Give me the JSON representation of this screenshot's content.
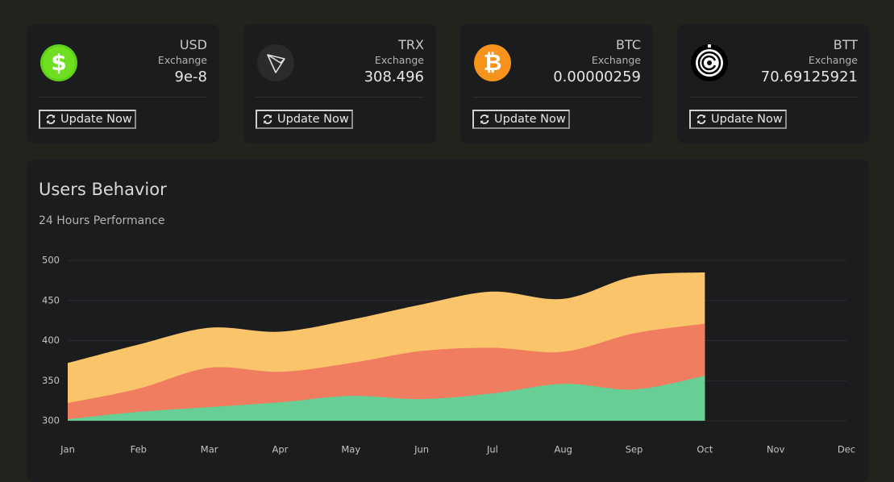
{
  "cards": [
    {
      "currency": "USD",
      "label": "Exchange",
      "value": "9e-8",
      "button": "Update Now",
      "icon": "$"
    },
    {
      "currency": "TRX",
      "label": "Exchange",
      "value": "308.496",
      "button": "Update Now"
    },
    {
      "currency": "BTC",
      "label": "Exchange",
      "value": "0.00000259",
      "button": "Update Now",
      "icon": "₿"
    },
    {
      "currency": "BTT",
      "label": "Exchange",
      "value": "70.69125921",
      "button": "Update Now"
    }
  ],
  "chart_data": {
    "type": "area",
    "title": "Users Behavior",
    "subtitle": "24 Hours Performance",
    "categories": [
      "Jan",
      "Feb",
      "Mar",
      "Apr",
      "May",
      "Jun",
      "Jul",
      "Aug",
      "Sep",
      "Oct",
      "Nov",
      "Dec"
    ],
    "series": [
      {
        "color": "#fac46b",
        "values": [
          372,
          395,
          416,
          411,
          426,
          445,
          461,
          452,
          480,
          485,
          null,
          null
        ]
      },
      {
        "color": "#f07d5f",
        "values": [
          322,
          340,
          366,
          361,
          372,
          387,
          391,
          386,
          409,
          421,
          null,
          null
        ]
      },
      {
        "color": "#67cf96",
        "values": [
          302,
          311,
          317,
          323,
          331,
          327,
          334,
          346,
          339,
          356,
          null,
          null
        ]
      }
    ],
    "ylim": [
      300,
      500
    ],
    "yticks": [
      300,
      350,
      400,
      450,
      500
    ],
    "grid": true
  }
}
